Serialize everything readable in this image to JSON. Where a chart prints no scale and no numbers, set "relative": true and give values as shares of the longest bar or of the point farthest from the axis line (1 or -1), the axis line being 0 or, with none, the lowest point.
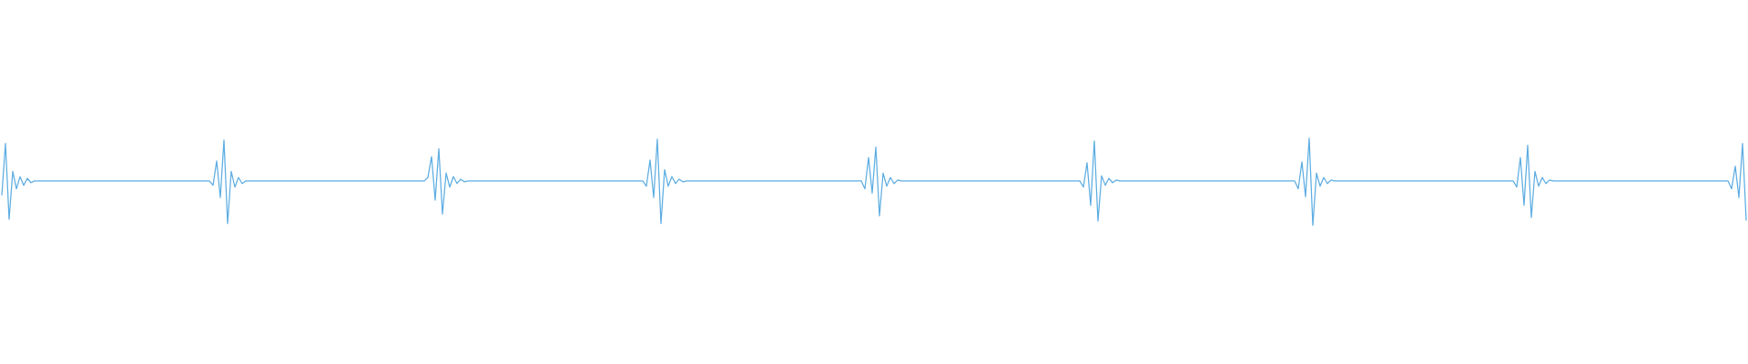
{
  "chart_data": {
    "type": "line",
    "relative": true,
    "color": "#5dade2",
    "categories": [
      null,
      null,
      null,
      null,
      null,
      null,
      null,
      null,
      null,
      null,
      null,
      null,
      null,
      null,
      null,
      null,
      null,
      null,
      null,
      null,
      null,
      null,
      null,
      null,
      null,
      null,
      null,
      null,
      null,
      null,
      null,
      null,
      null,
      null,
      null,
      null,
      null,
      null,
      null,
      null,
      null,
      null,
      null,
      null,
      null,
      null,
      null,
      null,
      null,
      null,
      null,
      null,
      null,
      null,
      null,
      null,
      null,
      null,
      null,
      null,
      null,
      null,
      null,
      null,
      null,
      null,
      null,
      null,
      null,
      null,
      null,
      null,
      null,
      null,
      null,
      null,
      null,
      null,
      null,
      null,
      null,
      null,
      null,
      null,
      null,
      null,
      null,
      null,
      null,
      null,
      null,
      null,
      null,
      null,
      null,
      null,
      null,
      null,
      null,
      null,
      null,
      null,
      null,
      null,
      null,
      null,
      null,
      null,
      null,
      null,
      null,
      null,
      null,
      null,
      null,
      null,
      null,
      null,
      null,
      null,
      null,
      null,
      null,
      null,
      null,
      null,
      null,
      null,
      null,
      null,
      null,
      null,
      null,
      null,
      null,
      null,
      null,
      null,
      null,
      null,
      null,
      null,
      null,
      null,
      null,
      null,
      null,
      null,
      null,
      null,
      null,
      null,
      null,
      null,
      null,
      null,
      null,
      null,
      null,
      null,
      null,
      null,
      null,
      null,
      null,
      null,
      null,
      null,
      null,
      null,
      null,
      null,
      null,
      null,
      null,
      null,
      null,
      null,
      null,
      null,
      null,
      null,
      null,
      null,
      null,
      null,
      null,
      null,
      null,
      null,
      null,
      null,
      null,
      null,
      null,
      null,
      null,
      null,
      null,
      null,
      null,
      null,
      null,
      null,
      null,
      null,
      null,
      null,
      null,
      null,
      null,
      null,
      null,
      null,
      null,
      null,
      null,
      null,
      null,
      null,
      null,
      null,
      null,
      null,
      null,
      null,
      null,
      null,
      null,
      null,
      null,
      null,
      null,
      null,
      null,
      null,
      null,
      null,
      null,
      null,
      null,
      null,
      null,
      null,
      null,
      null,
      null,
      null,
      null,
      null,
      null,
      null,
      null,
      null,
      null,
      null,
      null,
      null,
      null,
      null,
      null,
      null,
      null,
      null,
      null,
      null,
      null,
      null,
      null,
      null,
      null,
      null,
      null,
      null,
      null,
      null,
      null,
      null,
      null,
      null,
      null,
      null,
      null,
      null,
      null,
      null,
      null,
      null,
      null,
      null,
      null,
      null,
      null,
      null,
      null,
      null,
      null,
      null,
      null,
      null,
      null,
      null,
      null,
      null,
      null,
      null,
      null,
      null,
      null,
      null,
      null,
      null,
      null,
      null,
      null,
      null,
      null,
      null,
      null,
      null,
      null,
      null,
      null,
      null,
      null,
      null,
      null,
      null,
      null,
      null,
      null,
      null,
      null,
      null,
      null,
      null,
      null,
      null,
      null,
      null,
      null,
      null,
      null,
      null,
      null,
      null,
      null,
      null,
      null,
      null,
      null,
      null,
      null,
      null,
      null,
      null,
      null,
      null,
      null,
      null,
      null,
      null,
      null,
      null,
      null,
      null,
      null,
      null,
      null,
      null,
      null,
      null,
      null,
      null,
      null,
      null,
      null,
      null,
      null,
      null,
      null,
      null,
      null,
      null,
      null,
      null,
      null,
      null,
      null,
      null,
      null,
      null,
      null,
      null,
      null,
      null,
      null,
      null,
      null,
      null,
      null,
      null,
      null,
      null,
      null,
      null,
      null,
      null,
      null,
      null,
      null,
      null,
      null,
      null,
      null,
      null,
      null,
      null,
      null,
      null,
      null,
      null,
      null,
      null,
      null,
      null,
      null,
      null,
      null,
      null,
      null,
      null,
      null,
      null,
      null,
      null,
      null,
      null,
      null,
      null,
      null,
      null,
      null,
      null,
      null,
      null,
      null,
      null,
      null,
      null,
      null,
      null,
      null,
      null,
      null,
      null,
      null,
      null,
      null,
      null,
      null,
      null,
      null,
      null,
      null,
      null,
      null,
      null,
      null,
      null,
      null,
      null,
      null,
      null,
      null,
      null,
      null,
      null,
      null,
      null
    ],
    "values": [
      0.35,
      0.94,
      0.07,
      0.62,
      0.42,
      0.56,
      0.46,
      0.54,
      0.49,
      0.51,
      0.51,
      0.51,
      0.51,
      0.51,
      0.51,
      0.51,
      0.51,
      0.51,
      0.51,
      0.51,
      0.51,
      0.51,
      0.51,
      0.51,
      0.51,
      0.51,
      0.51,
      0.51,
      0.51,
      0.51,
      0.51,
      0.51,
      0.51,
      0.51,
      0.51,
      0.51,
      0.51,
      0.51,
      0.51,
      0.51,
      0.51,
      0.51,
      0.51,
      0.51,
      0.51,
      0.51,
      0.51,
      0.51,
      0.51,
      0.51,
      0.51,
      0.51,
      0.51,
      0.51,
      0.51,
      0.51,
      0.51,
      0.51,
      0.46,
      0.74,
      0.32,
      0.98,
      0.02,
      0.62,
      0.44,
      0.55,
      0.48,
      0.51,
      0.51,
      0.51,
      0.51,
      0.51,
      0.51,
      0.51,
      0.51,
      0.51,
      0.51,
      0.51,
      0.51,
      0.51,
      0.51,
      0.51,
      0.51,
      0.51,
      0.51,
      0.51,
      0.51,
      0.51,
      0.51,
      0.51,
      0.51,
      0.51,
      0.51,
      0.51,
      0.51,
      0.51,
      0.51,
      0.51,
      0.51,
      0.51,
      0.51,
      0.51,
      0.51,
      0.51,
      0.51,
      0.51,
      0.51,
      0.51,
      0.51,
      0.51,
      0.51,
      0.51,
      0.51,
      0.51,
      0.51,
      0.51,
      0.51,
      0.55,
      0.79,
      0.29,
      0.88,
      0.13,
      0.6,
      0.44,
      0.56,
      0.48,
      0.53,
      0.5,
      0.51,
      0.51,
      0.51,
      0.51,
      0.51,
      0.51,
      0.51,
      0.51,
      0.51,
      0.51,
      0.51,
      0.51,
      0.51,
      0.51,
      0.51,
      0.51,
      0.51,
      0.51,
      0.51,
      0.51,
      0.51,
      0.51,
      0.51,
      0.51,
      0.51,
      0.51,
      0.51,
      0.51,
      0.51,
      0.51,
      0.51,
      0.51,
      0.51,
      0.51,
      0.51,
      0.51,
      0.51,
      0.51,
      0.51,
      0.51,
      0.51,
      0.51,
      0.51,
      0.51,
      0.51,
      0.51,
      0.51,
      0.51,
      0.51,
      0.45,
      0.75,
      0.32,
      0.99,
      0.02,
      0.64,
      0.45,
      0.56,
      0.48,
      0.53,
      0.5,
      0.51,
      0.51,
      0.51,
      0.51,
      0.51,
      0.51,
      0.51,
      0.51,
      0.51,
      0.51,
      0.51,
      0.51,
      0.51,
      0.51,
      0.51,
      0.51,
      0.51,
      0.51,
      0.51,
      0.51,
      0.51,
      0.51,
      0.51,
      0.51,
      0.51,
      0.51,
      0.51,
      0.51,
      0.51,
      0.51,
      0.51,
      0.51,
      0.51,
      0.51,
      0.51,
      0.51,
      0.51,
      0.51,
      0.51,
      0.51,
      0.51,
      0.51,
      0.51,
      0.51,
      0.51,
      0.51,
      0.51,
      0.51,
      0.51,
      0.42,
      0.78,
      0.37,
      0.9,
      0.11,
      0.6,
      0.45,
      0.55,
      0.48,
      0.52,
      0.51,
      0.51,
      0.51,
      0.51,
      0.51,
      0.51,
      0.51,
      0.51,
      0.51,
      0.51,
      0.51,
      0.51,
      0.51,
      0.51,
      0.51,
      0.51,
      0.51,
      0.51,
      0.51,
      0.51,
      0.51,
      0.51,
      0.51,
      0.51,
      0.51,
      0.51,
      0.51,
      0.51,
      0.51,
      0.51,
      0.51,
      0.51,
      0.51,
      0.51,
      0.51,
      0.51,
      0.51,
      0.51,
      0.51,
      0.51,
      0.51,
      0.51,
      0.51,
      0.51,
      0.51,
      0.51,
      0.51,
      0.51,
      0.51,
      0.51,
      0.44,
      0.72,
      0.23,
      0.97,
      0.05,
      0.57,
      0.46,
      0.54,
      0.49,
      0.52,
      0.51,
      0.51,
      0.51,
      0.51,
      0.51,
      0.51,
      0.51,
      0.51,
      0.51,
      0.51,
      0.51,
      0.51,
      0.51,
      0.51,
      0.51,
      0.51,
      0.51,
      0.51,
      0.51,
      0.51,
      0.51,
      0.51,
      0.51,
      0.51,
      0.51,
      0.51,
      0.51,
      0.51,
      0.51,
      0.51,
      0.51,
      0.51,
      0.51,
      0.51,
      0.51,
      0.51,
      0.51,
      0.51,
      0.51,
      0.51,
      0.51,
      0.51,
      0.51,
      0.51,
      0.51,
      0.51,
      0.51,
      0.51,
      0.51,
      0.42,
      0.73,
      0.33,
      1.0,
      0.0,
      0.6,
      0.45,
      0.55,
      0.48,
      0.52,
      0.51,
      0.51,
      0.51,
      0.51,
      0.51,
      0.51,
      0.51,
      0.51,
      0.51,
      0.51,
      0.51,
      0.51,
      0.51,
      0.51,
      0.51,
      0.51,
      0.51,
      0.51,
      0.51,
      0.51,
      0.51,
      0.51,
      0.51,
      0.51,
      0.51,
      0.51,
      0.51,
      0.51,
      0.51,
      0.51,
      0.51,
      0.51,
      0.51,
      0.51,
      0.51,
      0.51,
      0.51,
      0.51,
      0.51,
      0.51,
      0.51,
      0.51,
      0.51,
      0.51,
      0.51,
      0.51,
      0.51,
      0.51,
      0.51,
      0.51,
      0.44,
      0.78,
      0.23,
      0.92,
      0.09,
      0.62,
      0.45,
      0.55,
      0.48,
      0.52,
      0.51,
      0.51,
      0.51,
      0.51,
      0.51,
      0.51,
      0.51,
      0.51,
      0.51,
      0.51,
      0.51,
      0.51,
      0.51,
      0.51,
      0.51,
      0.51,
      0.51,
      0.51,
      0.51,
      0.51,
      0.51,
      0.51,
      0.51,
      0.51,
      0.51,
      0.51,
      0.51,
      0.51,
      0.51,
      0.51,
      0.51,
      0.51,
      0.51,
      0.51,
      0.51,
      0.51,
      0.51,
      0.51,
      0.51,
      0.51,
      0.51,
      0.51,
      0.51,
      0.51,
      0.51,
      0.51,
      0.51,
      0.51,
      0.51,
      0.42,
      0.68,
      0.32,
      0.94,
      0.06
    ]
  }
}
